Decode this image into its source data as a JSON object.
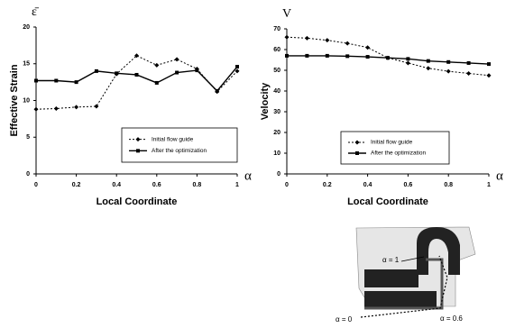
{
  "chart_data": [
    {
      "type": "line",
      "y_symbol": "ε̄",
      "x_symbol": "α",
      "ylabel": "Effective Strain",
      "xlabel": "Local Coordinate",
      "x": [
        0,
        0.1,
        0.2,
        0.3,
        0.4,
        0.5,
        0.6,
        0.7,
        0.8,
        0.9,
        1
      ],
      "series": [
        {
          "name": "Initial flow guide",
          "color": "#000000",
          "dashed": true,
          "marker": "diamond",
          "values": [
            8.8,
            8.9,
            9.1,
            9.2,
            13.6,
            16.1,
            14.8,
            15.6,
            14.3,
            11.2,
            14.0
          ]
        },
        {
          "name": "After the optimization",
          "color": "#000000",
          "dashed": false,
          "marker": "square",
          "values": [
            12.7,
            12.7,
            12.5,
            14.0,
            13.7,
            13.5,
            12.4,
            13.8,
            14.1,
            11.3,
            14.6
          ]
        }
      ],
      "xlim": [
        0,
        1
      ],
      "xticks": [
        0,
        0.2,
        0.4,
        0.6,
        0.8,
        1
      ],
      "ylim": [
        0,
        20
      ],
      "yticks": [
        0,
        5,
        10,
        15,
        20
      ],
      "grid": false
    },
    {
      "type": "line",
      "y_symbol": "V",
      "x_symbol": "α",
      "ylabel": "Velocity",
      "xlabel": "Local Coordinate",
      "x": [
        0,
        0.1,
        0.2,
        0.3,
        0.4,
        0.5,
        0.6,
        0.7,
        0.8,
        0.9,
        1
      ],
      "series": [
        {
          "name": "Initial flow guide",
          "color": "#000000",
          "dashed": true,
          "marker": "diamond",
          "values": [
            66,
            65.5,
            64.5,
            63,
            61,
            56,
            53.5,
            51,
            49.5,
            48.5,
            47.5
          ]
        },
        {
          "name": "After the optimization",
          "color": "#000000",
          "dashed": false,
          "marker": "square",
          "values": [
            57,
            57,
            57,
            56.8,
            56.5,
            56,
            55.5,
            54.5,
            54,
            53.5,
            53
          ]
        }
      ],
      "xlim": [
        0,
        1
      ],
      "xticks": [
        0,
        0.2,
        0.4,
        0.6,
        0.8,
        1
      ],
      "ylim": [
        0,
        70
      ],
      "yticks": [
        0,
        10,
        20,
        30,
        40,
        50,
        60,
        70
      ],
      "grid": false
    }
  ],
  "diagram": {
    "labels": [
      "α = 1",
      "α = 0",
      "α = 0.6"
    ]
  }
}
